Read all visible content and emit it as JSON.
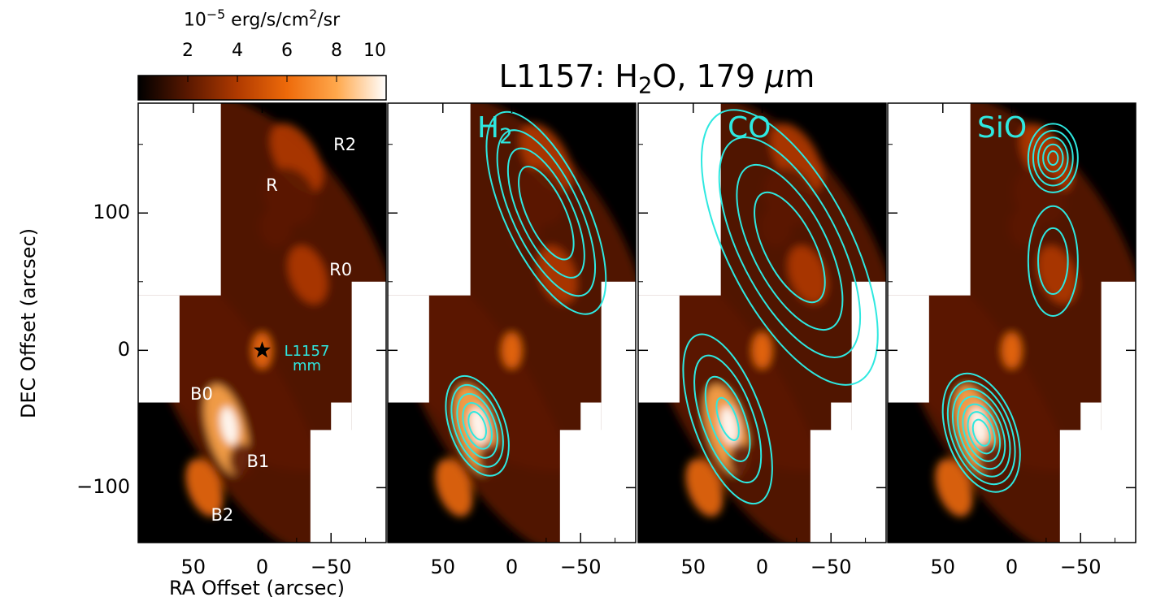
{
  "chart_data": {
    "type": "heatmap",
    "title": "L1157: H2O, 179 µm",
    "title_parts": {
      "pre": "L1157: H",
      "sub": "2",
      "post": "O, 179 ",
      "mu": "µ",
      "unit": "m"
    },
    "xlabel": "RA Offset (arcsec)",
    "ylabel": "DEC Offset (arcsec)",
    "xlim": [
      90,
      -90
    ],
    "ylim": [
      -140,
      180
    ],
    "x_ticks": [
      50,
      0,
      -50
    ],
    "x_tick_labels": [
      "50",
      "0",
      "−50"
    ],
    "y_ticks": [
      100,
      0,
      -100
    ],
    "y_tick_labels": [
      "100",
      "0",
      "−100"
    ],
    "colorbar": {
      "label_pre": "10",
      "label_exp": "−5",
      "label_mid": " erg/s/cm",
      "label_exp2": "2",
      "label_post": "/sr",
      "range": [
        0,
        10
      ],
      "ticks": [
        2,
        4,
        6,
        8,
        10
      ],
      "tick_labels": [
        "2",
        "4",
        "6",
        "8",
        "10"
      ],
      "colors": [
        "#000000",
        "#5a1800",
        "#b03a00",
        "#ee6a0a",
        "#ffa84c",
        "#ffffff"
      ]
    },
    "contour_color": "#2ee8e0",
    "panels": [
      {
        "label": "",
        "contour": "none"
      },
      {
        "label": "H",
        "label_sub": "2",
        "contour": "H2"
      },
      {
        "label": "CO",
        "label_sub": "",
        "contour": "CO"
      },
      {
        "label": "SiO",
        "label_sub": "",
        "contour": "SiO"
      }
    ],
    "annotations": [
      {
        "text": "R2",
        "x": -60,
        "y": 150
      },
      {
        "text": "R",
        "x": -7,
        "y": 120
      },
      {
        "text": "R0",
        "x": -57,
        "y": 59
      },
      {
        "text": "B0",
        "x": 44,
        "y": -32
      },
      {
        "text": "B1",
        "x": 3,
        "y": -81
      },
      {
        "text": "B2",
        "x": 29,
        "y": -120
      }
    ],
    "source": {
      "label_line1": "L1157",
      "label_line2": "mm",
      "x": 0,
      "y": 0
    }
  }
}
